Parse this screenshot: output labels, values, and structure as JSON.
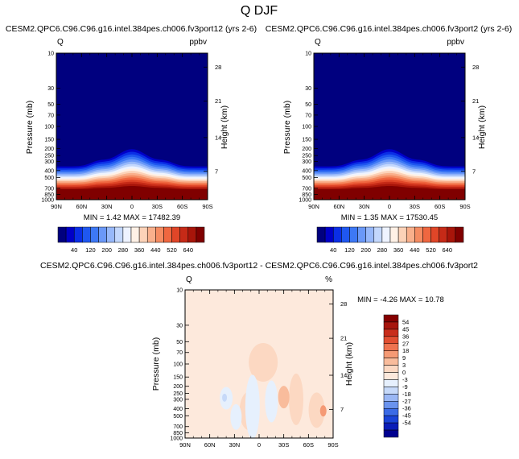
{
  "page": {
    "title": "Q DJF"
  },
  "colors": {
    "contour_fill": [
      "#00007f",
      "#0000c8",
      "#0a2ee6",
      "#1f57f0",
      "#3d78f5",
      "#6a98f8",
      "#97b8fa",
      "#c3d7fc",
      "#eef3ff",
      "#fff1e6",
      "#fcd2b8",
      "#f9b08c",
      "#f58c62",
      "#ef6740",
      "#e04628",
      "#c62a17",
      "#a8150a",
      "#800000"
    ],
    "diff_fill": [
      "#000090",
      "#0a1db8",
      "#1a44d8",
      "#3b6be6",
      "#6a93ee",
      "#9ab7f4",
      "#c6d9f9",
      "#e6f0fd",
      "#fde9dc",
      "#fcd8c2",
      "#f9bc9c",
      "#f59a75",
      "#ee7350",
      "#e14e31",
      "#c82d1b",
      "#a7150d",
      "#850000"
    ]
  },
  "charts": {
    "left": {
      "title": "CESM2.QPC6.C96.C96.g16.intel.384pes.ch006.fv3port12 (yrs 2-6)",
      "var": "Q",
      "unit": "ppbv",
      "stats": "MIN =  1.42  MAX = 17482.39"
    },
    "right": {
      "title": "CESM2.QPC6.C96.C96.g16.intel.384pes.ch006.fv3port2 (yrs 2-6)",
      "var": "Q",
      "unit": "ppbv",
      "stats": "MIN =  1.35  MAX = 17530.45"
    },
    "diff": {
      "title": "CESM2.QPC6.C96.C96.g16.intel.384pes.ch006.fv3port12 - CESM2.QPC6.C96.C96.g16.intel.384pes.ch006.fv3port2",
      "var": "Q",
      "unit": "%",
      "stats": "MIN = -4.26  MAX = 10.78"
    }
  },
  "chart_data": [
    {
      "type": "heatmap",
      "title": "CESM2.QPC6.C96.C96.g16.intel.384pes.ch006.fv3port12 (yrs 2-6)",
      "ylabel": "Pressure (mb)",
      "y2label": "Height (km)",
      "x_ticks": [
        "90N",
        "60N",
        "30N",
        "0",
        "30S",
        "60S",
        "90S"
      ],
      "x_values": [
        90,
        60,
        30,
        0,
        -30,
        -60,
        -90
      ],
      "y_ticks": [
        "10",
        "30",
        "50",
        "70",
        "100",
        "150",
        "200",
        "250",
        "300",
        "400",
        "500",
        "700",
        "850",
        "1000"
      ],
      "y_values": [
        10,
        30,
        50,
        70,
        100,
        150,
        200,
        250,
        300,
        400,
        500,
        700,
        850,
        1000
      ],
      "y_scale": "log",
      "y2_ticks": [
        "28",
        "21",
        "14",
        "7"
      ],
      "colorbar_levels": [
        "40",
        "120",
        "200",
        "280",
        "360",
        "440",
        "520",
        "640"
      ],
      "min": 1.42,
      "max": 17482.39
    },
    {
      "type": "heatmap",
      "title": "CESM2.QPC6.C96.C96.g16.intel.384pes.ch006.fv3port2 (yrs 2-6)",
      "ylabel": "Pressure (mb)",
      "y2label": "Height (km)",
      "x_ticks": [
        "90N",
        "60N",
        "30N",
        "0",
        "30S",
        "60S",
        "90S"
      ],
      "x_values": [
        90,
        60,
        30,
        0,
        -30,
        -60,
        -90
      ],
      "y_ticks": [
        "10",
        "30",
        "50",
        "70",
        "100",
        "150",
        "200",
        "250",
        "300",
        "400",
        "500",
        "700",
        "850",
        "1000"
      ],
      "y_values": [
        10,
        30,
        50,
        70,
        100,
        150,
        200,
        250,
        300,
        400,
        500,
        700,
        850,
        1000
      ],
      "y_scale": "log",
      "y2_ticks": [
        "28",
        "21",
        "14",
        "7"
      ],
      "colorbar_levels": [
        "40",
        "120",
        "200",
        "280",
        "360",
        "440",
        "520",
        "640"
      ],
      "min": 1.35,
      "max": 17530.45
    },
    {
      "type": "heatmap",
      "title": "CESM2.QPC6.C96.C96.g16.intel.384pes.ch006.fv3port12 - CESM2.QPC6.C96.C96.g16.intel.384pes.ch006.fv3port2",
      "ylabel": "Pressure (mb)",
      "y2label": "Height (km)",
      "x_ticks": [
        "90N",
        "60N",
        "30N",
        "0",
        "30S",
        "60S",
        "90S"
      ],
      "x_values": [
        90,
        60,
        30,
        0,
        -30,
        -60,
        -90
      ],
      "y_ticks": [
        "10",
        "30",
        "50",
        "70",
        "100",
        "150",
        "200",
        "250",
        "300",
        "400",
        "500",
        "700",
        "850",
        "1000"
      ],
      "y_values": [
        10,
        30,
        50,
        70,
        100,
        150,
        200,
        250,
        300,
        400,
        500,
        700,
        850,
        1000
      ],
      "y_scale": "log",
      "y2_ticks": [
        "28",
        "21",
        "14",
        "7"
      ],
      "colorbar_levels": [
        "54",
        "45",
        "36",
        "27",
        "18",
        "9",
        "3",
        "0",
        "-3",
        "-9",
        "-18",
        "-27",
        "-36",
        "-45",
        "-54"
      ],
      "min": -4.26,
      "max": 10.78
    }
  ]
}
